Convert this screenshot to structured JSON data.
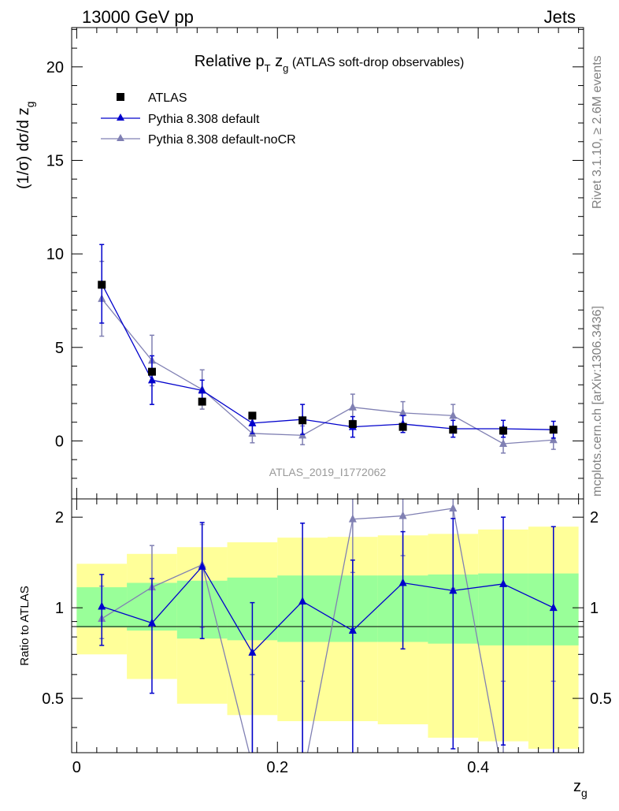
{
  "header": {
    "energy_label": "13000 GeV pp",
    "process_label": "Jets"
  },
  "side_labels": {
    "rivet": "Rivet 3.1.10, ≥ 2.6M events",
    "mcplots": "mcplots.cern.ch [arXiv:1306.3436]"
  },
  "analysis_id": "ATLAS_2019_I1772062",
  "colors": {
    "data": "#000000",
    "default": "#0000cc",
    "nocr": "#8080b3",
    "band_inner": "#99ff99",
    "band_outer": "#ffff99"
  },
  "chart_data": [
    {
      "type": "line",
      "title": "Relative pT zg (ATLAS soft-drop observables)",
      "title_parts": {
        "a": "Relative p",
        "sub1": "T",
        "b": " z",
        "sub2": "g",
        "c": " (ATLAS soft-drop observables)"
      },
      "ylabel": "(1/σ) dσ/d z",
      "ylabel_sub": "g",
      "xlim": [
        -0.005,
        0.505
      ],
      "ylim": [
        -3.1,
        22.1
      ],
      "yticks": [
        "0",
        "5",
        "10",
        "15",
        "20"
      ],
      "legend_position": "top-left",
      "x": [
        0.025,
        0.075,
        0.125,
        0.175,
        0.225,
        0.275,
        0.325,
        0.375,
        0.425,
        0.475
      ],
      "series": [
        {
          "name": "ATLAS",
          "marker": "square",
          "values": [
            8.35,
            3.7,
            2.1,
            1.35,
            1.1,
            0.9,
            0.75,
            0.6,
            0.55,
            0.6
          ],
          "errors": [
            0,
            0,
            0,
            0,
            0,
            0,
            0,
            0,
            0,
            0
          ]
        },
        {
          "name": "Pythia 8.308 default",
          "marker": "triangle",
          "values": [
            8.4,
            3.25,
            2.7,
            0.95,
            1.15,
            0.75,
            0.9,
            0.65,
            0.65,
            0.6
          ],
          "errors": [
            2.1,
            1.3,
            0.55,
            0.55,
            0.8,
            0.55,
            0.45,
            0.45,
            0.45,
            0.45
          ]
        },
        {
          "name": "Pythia 8.308 default-noCR",
          "marker": "triangle",
          "values": [
            7.6,
            4.3,
            2.75,
            0.4,
            0.3,
            1.8,
            1.5,
            1.35,
            -0.15,
            0.05
          ],
          "errors": [
            2.0,
            1.35,
            1.05,
            0.5,
            0.5,
            0.7,
            0.6,
            0.6,
            0.5,
            0.5
          ]
        }
      ]
    },
    {
      "type": "line",
      "ylabel": "Ratio to ATLAS",
      "xlabel": "z",
      "xlabel_sub": "g",
      "xlim": [
        -0.005,
        0.505
      ],
      "ylim": [
        0.33,
        2.3
      ],
      "yticks": [
        "0.5",
        "1",
        "2"
      ],
      "xticks": [
        "0",
        "0.2",
        "0.4"
      ],
      "x_edges": [
        0.0,
        0.05,
        0.1,
        0.15,
        0.2,
        0.25,
        0.3,
        0.35,
        0.4,
        0.45,
        0.5
      ],
      "band_inner": {
        "low": [
          0.86,
          0.84,
          0.79,
          0.78,
          0.77,
          0.77,
          0.77,
          0.76,
          0.75,
          0.75
        ],
        "high": [
          1.17,
          1.21,
          1.23,
          1.26,
          1.28,
          1.28,
          1.28,
          1.29,
          1.3,
          1.3
        ]
      },
      "band_outer": {
        "low": [
          0.7,
          0.58,
          0.48,
          0.44,
          0.42,
          0.42,
          0.41,
          0.37,
          0.36,
          0.34
        ],
        "high": [
          1.4,
          1.51,
          1.59,
          1.65,
          1.71,
          1.72,
          1.74,
          1.76,
          1.82,
          1.86
        ]
      },
      "x": [
        0.025,
        0.075,
        0.125,
        0.175,
        0.225,
        0.275,
        0.325,
        0.375,
        0.425,
        0.475
      ],
      "series": [
        {
          "name": "Pythia 8.308 default",
          "values": [
            1.01,
            0.89,
            1.37,
            0.71,
            1.05,
            0.84,
            1.21,
            1.14,
            1.2,
            1.0
          ],
          "err_low": [
            0.26,
            0.37,
            0.58,
            0.71,
            1.05,
            0.84,
            0.48,
            0.8,
            0.85,
            0.8
          ],
          "err_high": [
            0.28,
            0.36,
            0.55,
            0.33,
            0.86,
            0.6,
            0.58,
            0.84,
            0.8,
            0.86
          ]
        },
        {
          "name": "Pythia 8.308 default-noCR",
          "values": [
            0.92,
            1.17,
            1.39,
            0.3,
            0.27,
            1.97,
            2.02,
            2.14,
            0.27,
            0.27
          ],
          "err_low": [
            0.13,
            0.3,
            0.53,
            0.3,
            0.27,
            0.66,
            0.53,
            0.98,
            0.27,
            0.27
          ],
          "err_high": [
            0.26,
            0.44,
            0.5,
            0.3,
            0.3,
            0.5,
            0.6,
            0.6,
            0.3,
            0.3
          ]
        }
      ]
    }
  ]
}
